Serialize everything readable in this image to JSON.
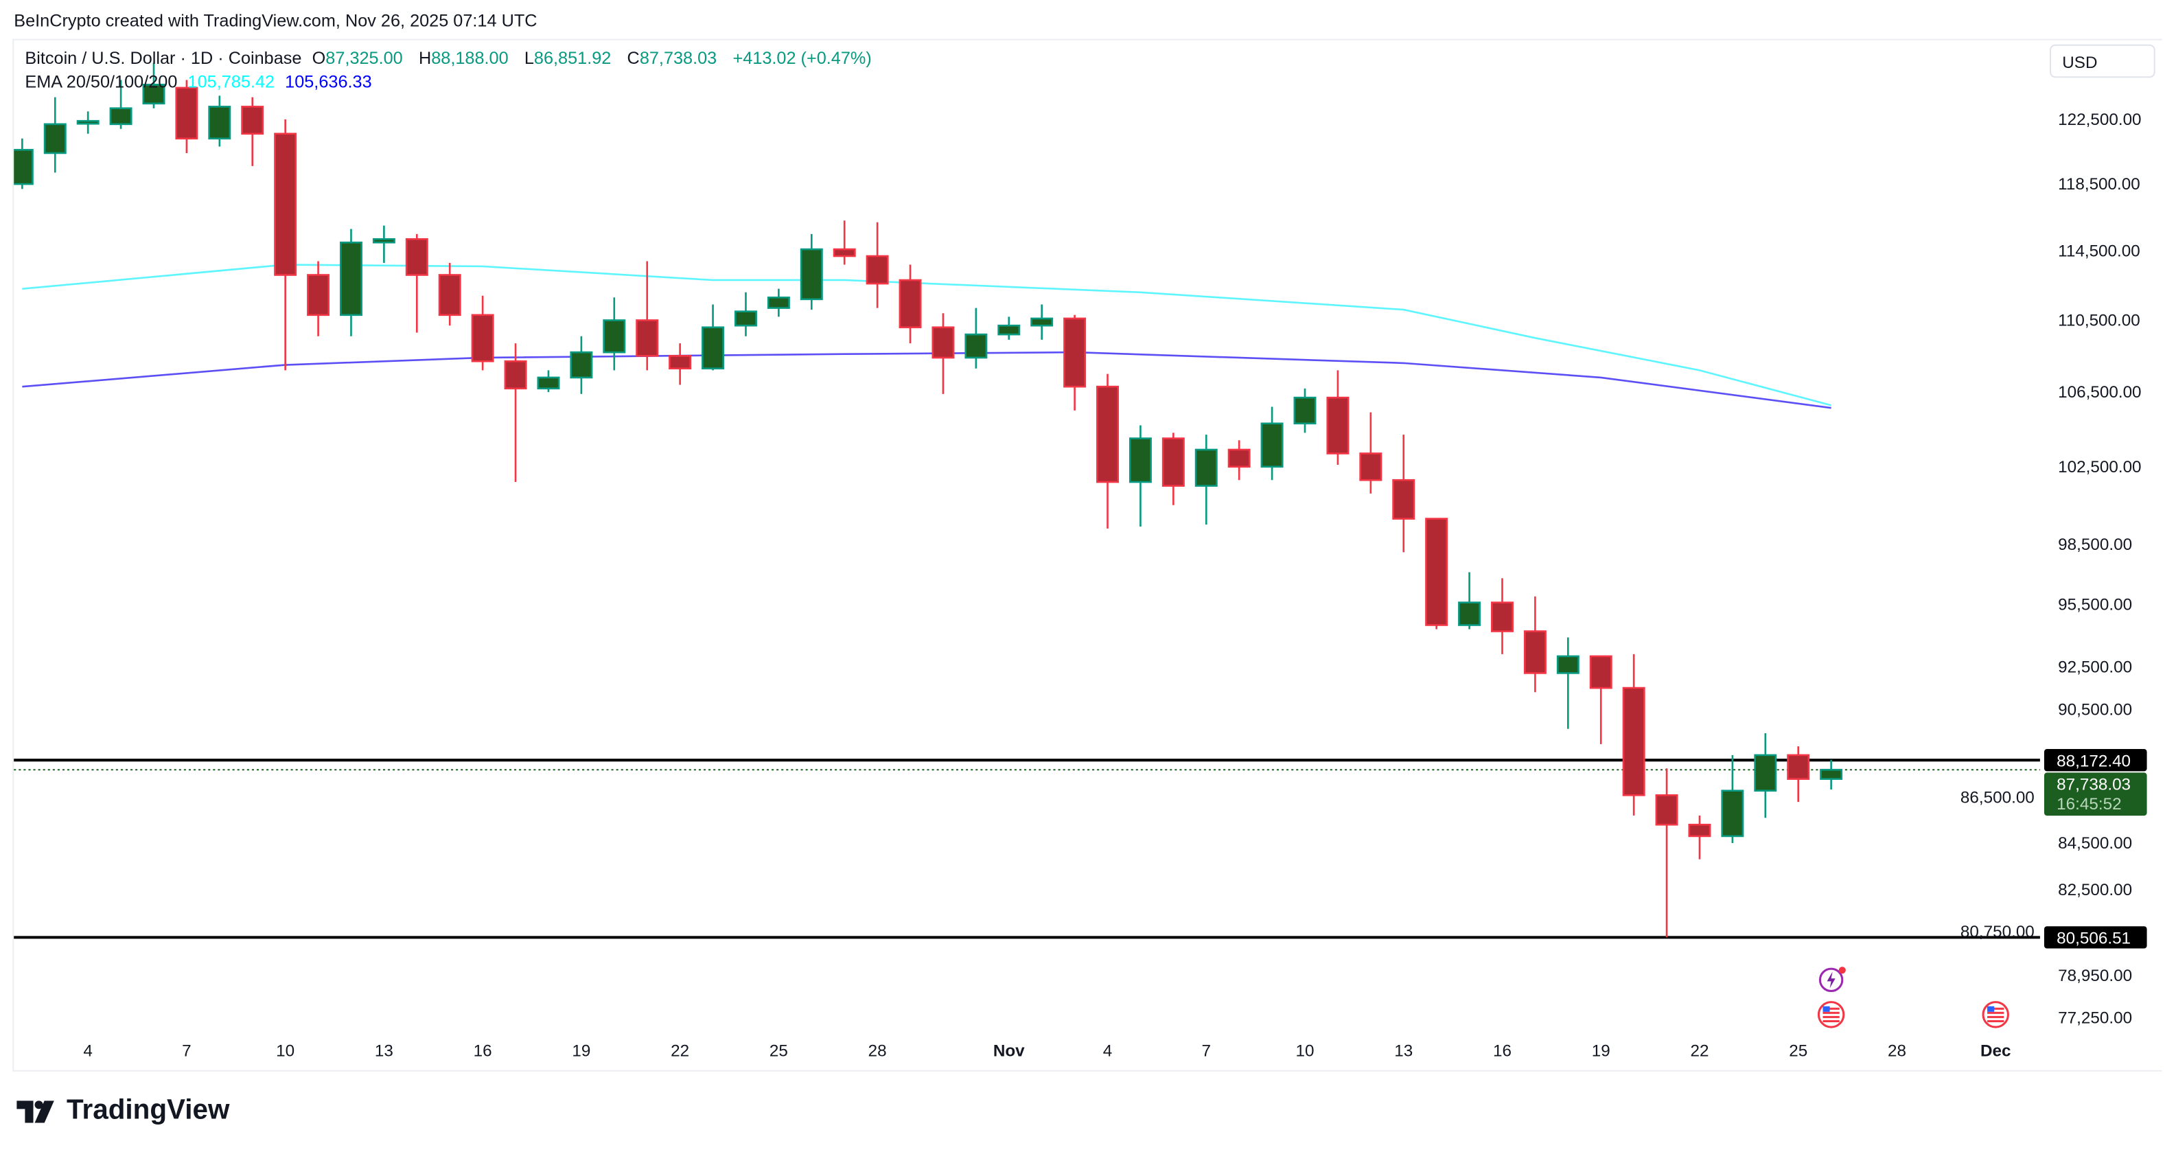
{
  "credit": "BeInCrypto created with TradingView.com, Nov 26, 2025 07:14 UTC",
  "symbol": {
    "title": "Bitcoin / U.S. Dollar · 1D · Coinbase",
    "o_label": "O",
    "o": "87,325.00",
    "h_label": "H",
    "h": "88,188.00",
    "l_label": "L",
    "l": "86,851.92",
    "c_label": "C",
    "c": "87,738.03",
    "change": "+413.02 (+0.47%)"
  },
  "ema": {
    "label": "EMA 20/50/100/200",
    "value1": "105,785.42",
    "value2": "105,636.33"
  },
  "currency": "USD",
  "brand": "TradingView",
  "colors": {
    "up_body": "#1b5e20",
    "up_border": "#089981",
    "down_body": "#b22833",
    "down_border": "#f23645",
    "ema1": "#5ff5ff",
    "ema2": "#5b4ff5",
    "price_tag": "#1b5e20",
    "level_tag": "#000000"
  },
  "chart_data": {
    "type": "candlestick",
    "y_scale": "log",
    "ylim": [
      76000,
      128000
    ],
    "start_date": "2025-10-02",
    "y_ticks": [
      "122,500.00",
      "118,500.00",
      "114,500.00",
      "110,500.00",
      "106,500.00",
      "102,500.00",
      "98,500.00",
      "95,500.00",
      "92,500.00",
      "90,500.00",
      "86,500.00",
      "84,500.00",
      "82,500.00",
      "80,750.00",
      "78,950.00",
      "77,250.00"
    ],
    "x_ticks": [
      {
        "day": "2025-10-04",
        "label": "4"
      },
      {
        "day": "2025-10-07",
        "label": "7"
      },
      {
        "day": "2025-10-10",
        "label": "10"
      },
      {
        "day": "2025-10-13",
        "label": "13"
      },
      {
        "day": "2025-10-16",
        "label": "16"
      },
      {
        "day": "2025-10-19",
        "label": "19"
      },
      {
        "day": "2025-10-22",
        "label": "22"
      },
      {
        "day": "2025-10-25",
        "label": "25"
      },
      {
        "day": "2025-10-28",
        "label": "28"
      },
      {
        "day": "2025-11-01",
        "label": "Nov"
      },
      {
        "day": "2025-11-04",
        "label": "4"
      },
      {
        "day": "2025-11-07",
        "label": "7"
      },
      {
        "day": "2025-11-10",
        "label": "10"
      },
      {
        "day": "2025-11-13",
        "label": "13"
      },
      {
        "day": "2025-11-16",
        "label": "16"
      },
      {
        "day": "2025-11-19",
        "label": "19"
      },
      {
        "day": "2025-11-22",
        "label": "22"
      },
      {
        "day": "2025-11-25",
        "label": "25"
      },
      {
        "day": "2025-11-28",
        "label": "28"
      },
      {
        "day": "2025-12-01",
        "label": "Dec"
      }
    ],
    "ohlc": [
      [
        118500,
        121300,
        118200,
        120600
      ],
      [
        120400,
        123900,
        119200,
        122200
      ],
      [
        122300,
        123000,
        121600,
        122400
      ],
      [
        122200,
        125000,
        121900,
        123200
      ],
      [
        123500,
        126100,
        123200,
        124700
      ],
      [
        124500,
        125000,
        120400,
        121300
      ],
      [
        121300,
        124000,
        120800,
        123300
      ],
      [
        123300,
        123900,
        119600,
        121600
      ],
      [
        121600,
        122500,
        107700,
        113100
      ],
      [
        113100,
        113900,
        109600,
        110800
      ],
      [
        110800,
        115800,
        109600,
        115000
      ],
      [
        115000,
        116000,
        113800,
        115200
      ],
      [
        115200,
        115500,
        109800,
        113100
      ],
      [
        113100,
        113800,
        110200,
        110800
      ],
      [
        110800,
        111900,
        107700,
        108200
      ],
      [
        108200,
        109200,
        101700,
        106700
      ],
      [
        106700,
        107700,
        106500,
        107300
      ],
      [
        107300,
        109600,
        106400,
        108700
      ],
      [
        108700,
        111800,
        107700,
        110500
      ],
      [
        110500,
        113900,
        107700,
        108500
      ],
      [
        108500,
        109200,
        106900,
        107800
      ],
      [
        107800,
        111400,
        107700,
        110100
      ],
      [
        110200,
        112100,
        109600,
        111000
      ],
      [
        111200,
        112300,
        110700,
        111800
      ],
      [
        111700,
        115500,
        111100,
        114600
      ],
      [
        114600,
        116300,
        113700,
        114200
      ],
      [
        114200,
        116200,
        111200,
        112600
      ],
      [
        112800,
        113700,
        109200,
        110100
      ],
      [
        110100,
        110900,
        106400,
        108400
      ],
      [
        108400,
        111200,
        107800,
        109700
      ],
      [
        109700,
        110700,
        109400,
        110200
      ],
      [
        110200,
        111400,
        109400,
        110600
      ],
      [
        110600,
        110800,
        105500,
        106800
      ],
      [
        106800,
        107500,
        99300,
        101700
      ],
      [
        101700,
        104700,
        99400,
        104000
      ],
      [
        104000,
        104300,
        100500,
        101500
      ],
      [
        101500,
        104200,
        99500,
        103400
      ],
      [
        103400,
        103900,
        101800,
        102500
      ],
      [
        102500,
        105700,
        101800,
        104800
      ],
      [
        104800,
        106700,
        104300,
        106200
      ],
      [
        106200,
        107700,
        102600,
        103200
      ],
      [
        103200,
        105400,
        101100,
        101800
      ],
      [
        101800,
        104200,
        98100,
        99800
      ],
      [
        99800,
        99800,
        94300,
        94500
      ],
      [
        94500,
        97100,
        94300,
        95600
      ],
      [
        95600,
        96800,
        93100,
        94200
      ],
      [
        94200,
        95900,
        91300,
        92200
      ],
      [
        92200,
        93900,
        89600,
        93000
      ],
      [
        93000,
        93000,
        88900,
        91500
      ],
      [
        91500,
        93100,
        85700,
        86600
      ],
      [
        86600,
        87800,
        80506.51,
        85300
      ],
      [
        85300,
        85700,
        83800,
        84800
      ],
      [
        84800,
        88400,
        84500,
        86800
      ],
      [
        86800,
        89400,
        85600,
        88400
      ],
      [
        88400,
        88800,
        86300,
        87325
      ],
      [
        87325,
        88188,
        86851.92,
        87738.03
      ]
    ],
    "ema_lines": [
      {
        "label": "105,785.42",
        "points": [
          [
            "2025-10-02",
            112300
          ],
          [
            "2025-10-10",
            113700
          ],
          [
            "2025-10-16",
            113600
          ],
          [
            "2025-10-23",
            112800
          ],
          [
            "2025-10-27",
            112800
          ],
          [
            "2025-11-05",
            112100
          ],
          [
            "2025-11-13",
            111100
          ],
          [
            "2025-11-17",
            109500
          ],
          [
            "2025-11-22",
            107700
          ],
          [
            "2025-11-26",
            105785.42
          ]
        ]
      },
      {
        "label": "105,636.33",
        "points": [
          [
            "2025-10-02",
            106800
          ],
          [
            "2025-10-10",
            108000
          ],
          [
            "2025-10-16",
            108400
          ],
          [
            "2025-10-27",
            108600
          ],
          [
            "2025-11-03",
            108700
          ],
          [
            "2025-11-13",
            108100
          ],
          [
            "2025-11-19",
            107300
          ],
          [
            "2025-11-26",
            105636.33
          ]
        ]
      }
    ],
    "levels": [
      {
        "value": 88172.4,
        "label": "88,172.40"
      },
      {
        "value": 80506.51,
        "label": "80,506.51"
      }
    ],
    "last_price": {
      "value": 87738.03,
      "label": "87,738.03",
      "countdown": "16:45:52"
    },
    "event_markers": [
      {
        "day": "2025-11-26",
        "icon": "sparkle-lightning-icon"
      },
      {
        "day": "2025-11-26",
        "icon": "us-flag-icon"
      },
      {
        "day": "2025-12-01",
        "icon": "us-flag-icon"
      }
    ]
  }
}
